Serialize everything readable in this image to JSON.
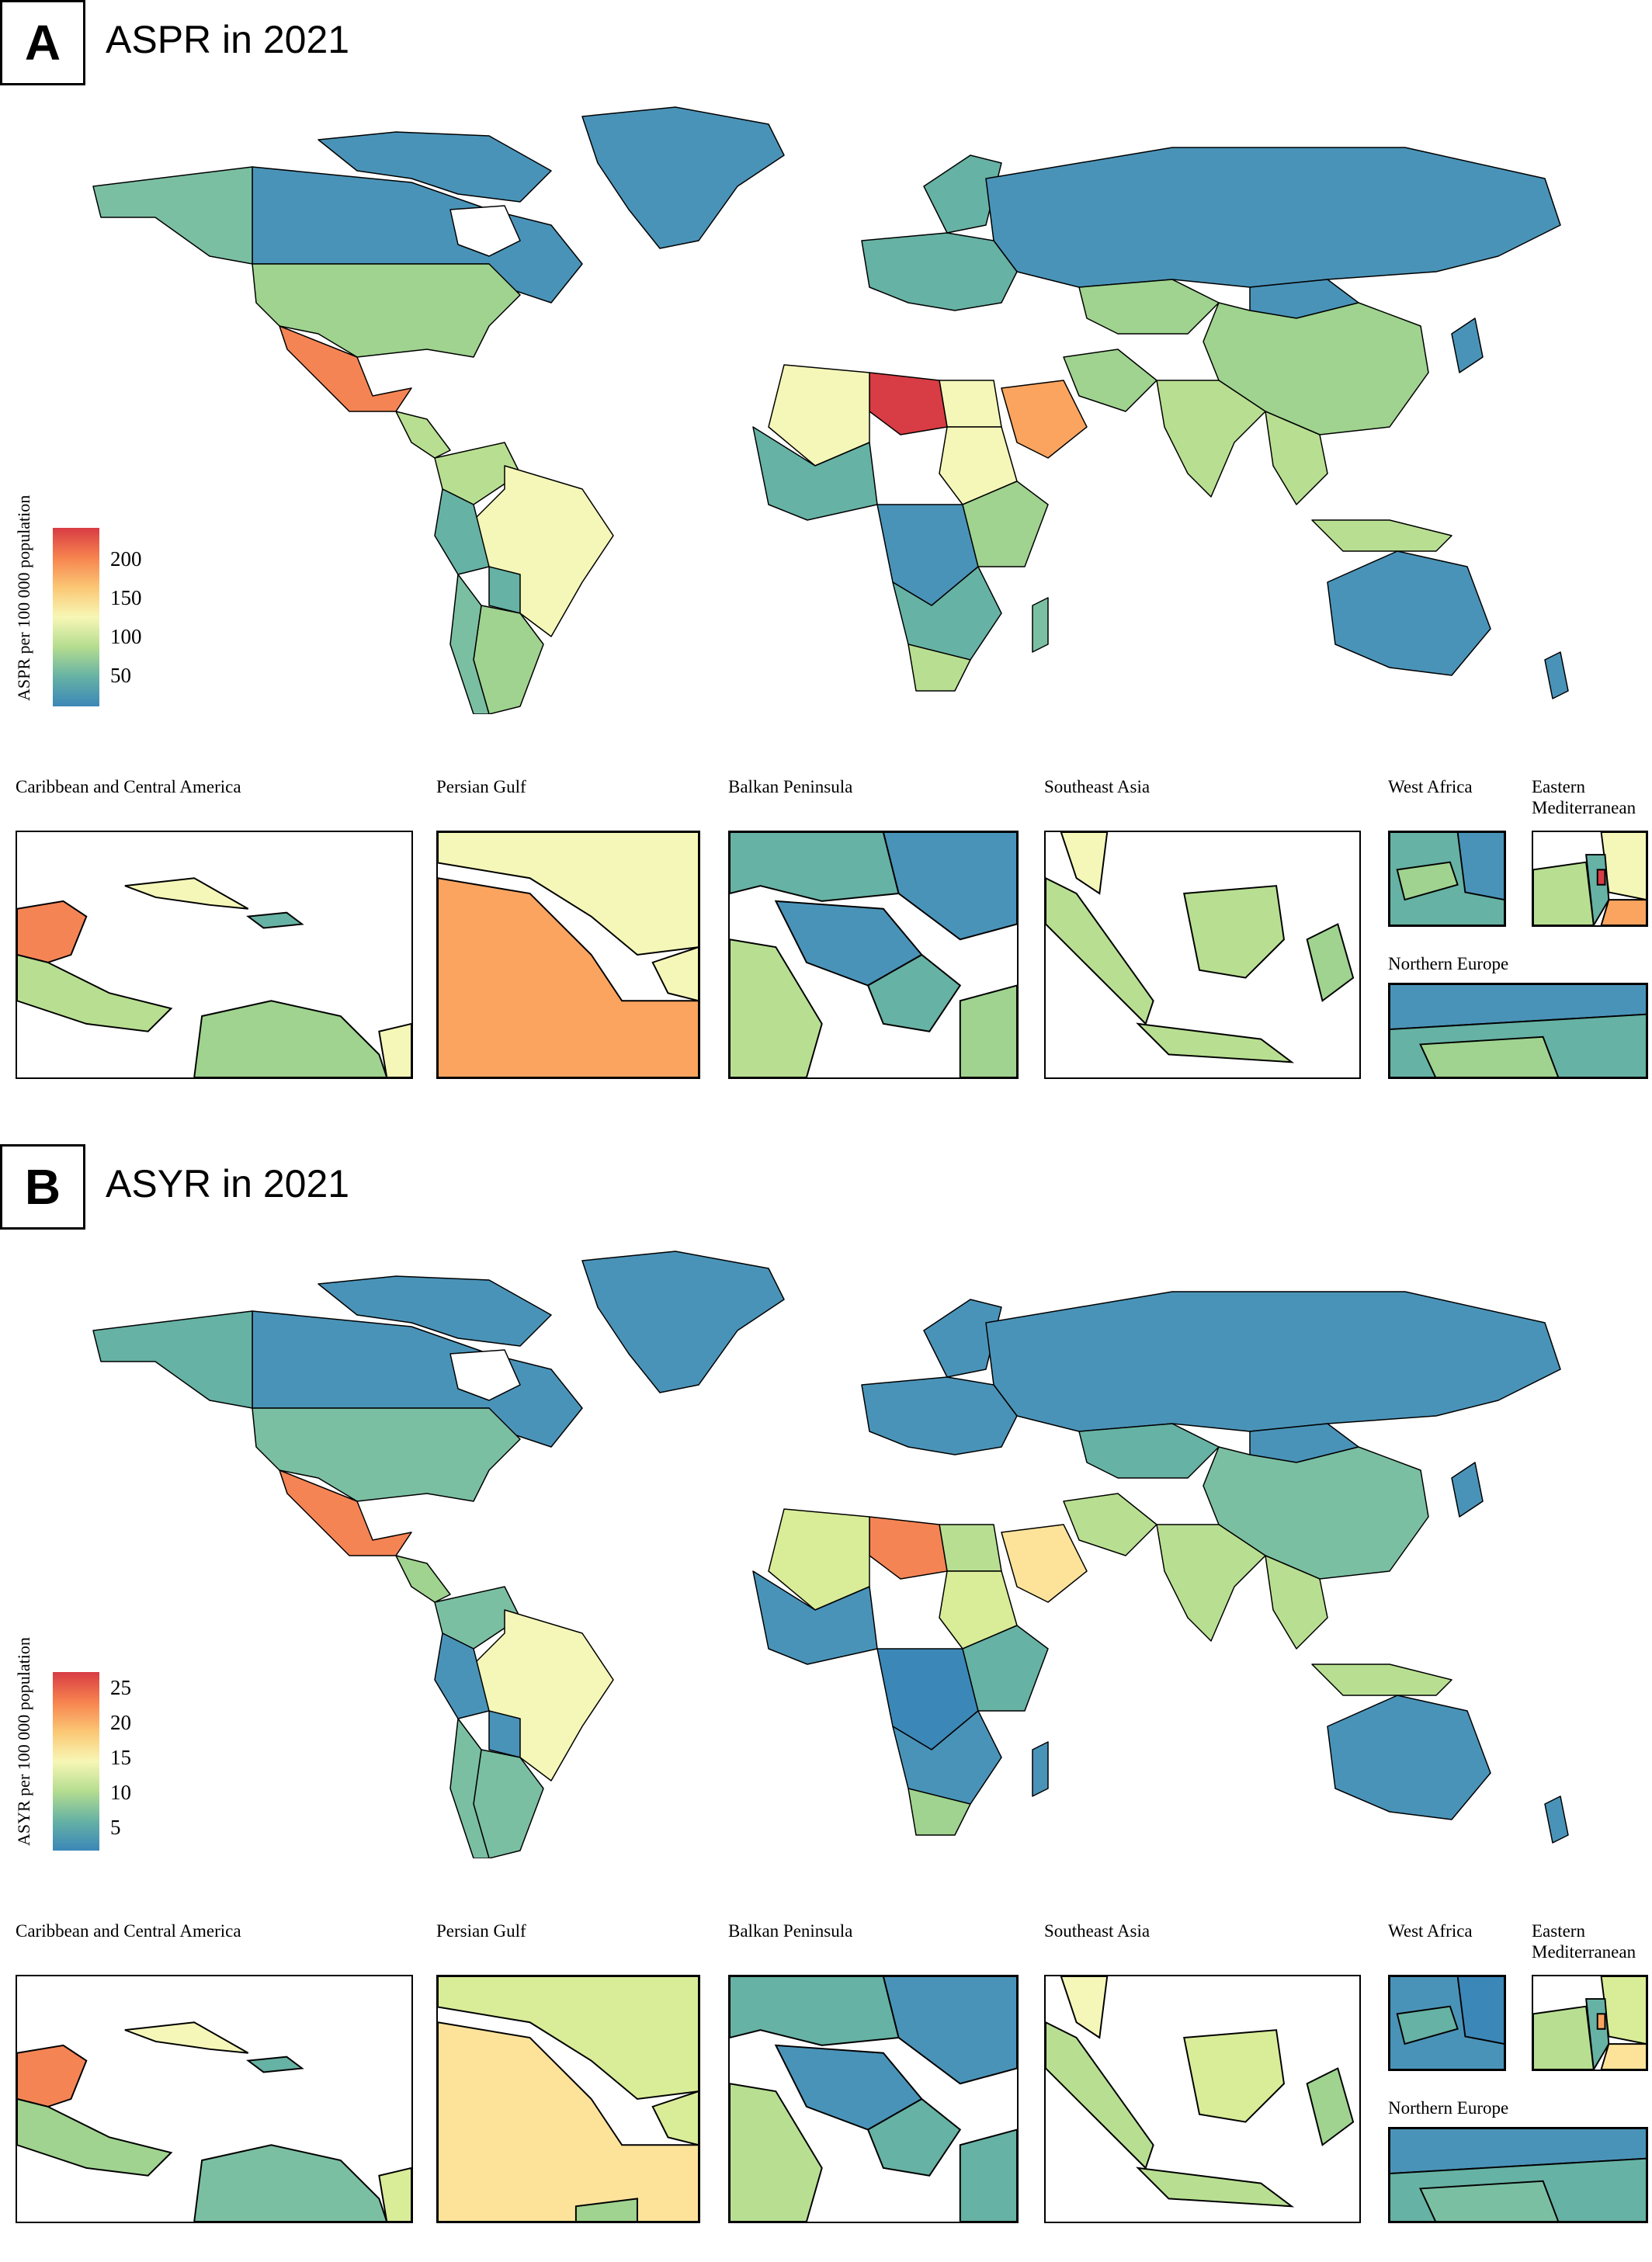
{
  "panels": [
    {
      "letter": "A",
      "title": "ASPR in 2021",
      "legend": {
        "title": "ASPR per 100 000 population",
        "ticks": [
          "200",
          "150",
          "100",
          "50"
        ],
        "tick_values": [
          200,
          150,
          100,
          50
        ],
        "range": [
          10,
          230
        ]
      }
    },
    {
      "letter": "B",
      "title": "ASYR in 2021",
      "legend": {
        "title": "ASYR per 100 000 population",
        "ticks": [
          "25",
          "20",
          "15",
          "10",
          "5"
        ],
        "tick_values": [
          25,
          20,
          15,
          10,
          5
        ],
        "range": [
          1,
          26
        ]
      }
    }
  ],
  "insets": {
    "caribbean": "Caribbean and Central America",
    "gulf": "Persian Gulf",
    "balkan": "Balkan Peninsula",
    "seasia": "Southeast Asia",
    "westafrica": "West Africa",
    "eastmed": "Eastern Mediterranean",
    "northeurope": "Northern Europe"
  },
  "colors": {
    "scale": [
      "#3b87b8",
      "#66b2a4",
      "#b5dd8f",
      "#f7f7b5",
      "#fbc774",
      "#f7834f",
      "#d83c44"
    ],
    "border": "#000000"
  }
}
